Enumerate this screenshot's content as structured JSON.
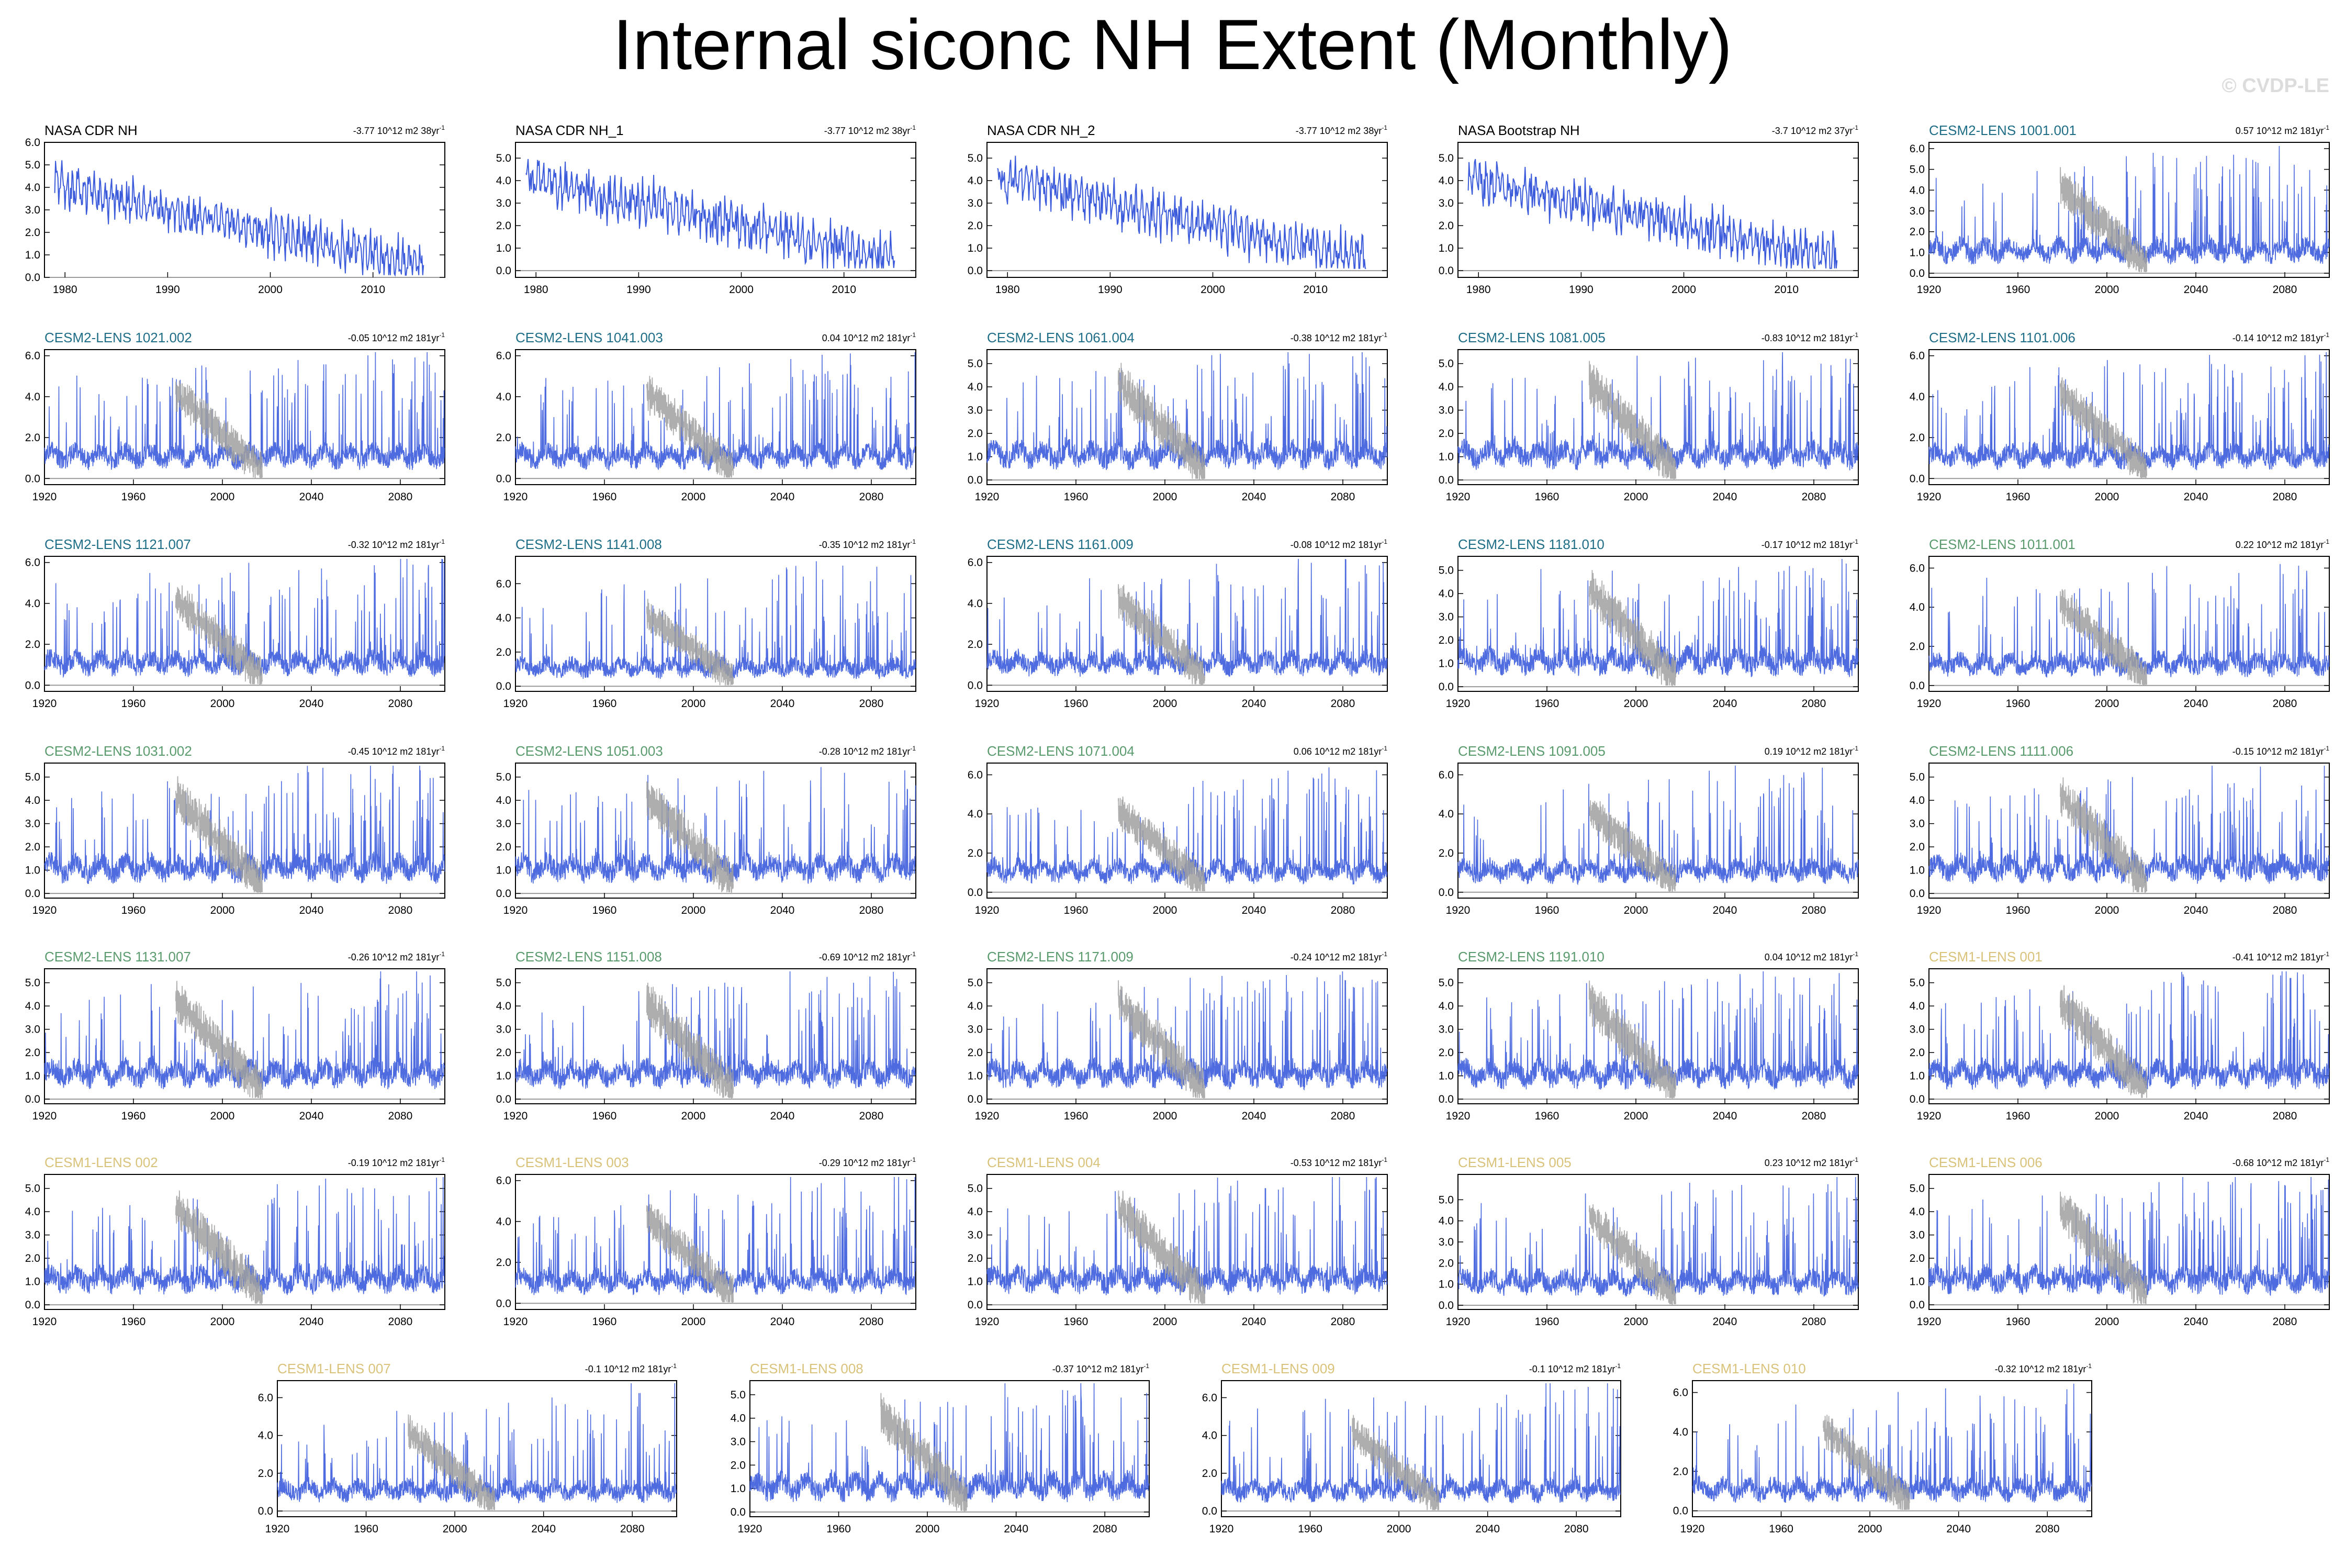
{
  "title": "Internal siconc NH Extent (Monthly)",
  "watermark": "© CVDP-LE",
  "colors": {
    "series": "#3b5bdb",
    "observed_overlay": "#a0a0a0",
    "frame": "#000000",
    "zero_line": "#999999",
    "name_obs": "#000000",
    "name_cesm2_a": "#1f6e87",
    "name_cesm2_b": "#5a9b6e",
    "name_cesm1": "#d9c27a"
  },
  "chart_data": [
    {
      "type": "line",
      "name": "NASA CDR NH",
      "trend": "-3.77 10^12 m2 38yr",
      "name_color": "name_obs",
      "xlim": [
        1978,
        2017
      ],
      "xticks": [
        "1980",
        "1990",
        "2000",
        "2010"
      ],
      "ylim": [
        0,
        6
      ],
      "yticks": [
        "0.0",
        "1.0",
        "2.0",
        "3.0",
        "4.0",
        "5.0",
        "6.0"
      ],
      "overlay": false
    },
    {
      "type": "line",
      "name": "NASA CDR NH_1",
      "trend": "-3.77 10^12 m2 38yr",
      "name_color": "name_obs",
      "xlim": [
        1978,
        2017
      ],
      "xticks": [
        "1980",
        "1990",
        "2000",
        "2010"
      ],
      "ylim": [
        -0.3,
        5.7
      ],
      "yticks": [
        "0.0",
        "1.0",
        "2.0",
        "3.0",
        "4.0",
        "5.0"
      ],
      "overlay": false
    },
    {
      "type": "line",
      "name": "NASA CDR NH_2",
      "trend": "-3.77 10^12 m2 38yr",
      "name_color": "name_obs",
      "xlim": [
        1978,
        2017
      ],
      "xticks": [
        "1980",
        "1990",
        "2000",
        "2010"
      ],
      "ylim": [
        -0.3,
        5.7
      ],
      "yticks": [
        "0.0",
        "1.0",
        "2.0",
        "3.0",
        "4.0",
        "5.0"
      ],
      "overlay": false
    },
    {
      "type": "line",
      "name": "NASA Bootstrap NH",
      "trend": "-3.7 10^12 m2 37yr",
      "name_color": "name_obs",
      "xlim": [
        1978,
        2017
      ],
      "xticks": [
        "1980",
        "1990",
        "2000",
        "2010"
      ],
      "ylim": [
        -0.3,
        5.7
      ],
      "yticks": [
        "0.0",
        "1.0",
        "2.0",
        "3.0",
        "4.0",
        "5.0"
      ],
      "overlay": false
    },
    {
      "type": "line",
      "name": "CESM2-LENS 1001.001",
      "trend": "0.57 10^12 m2 181yr",
      "name_color": "name_cesm2_a",
      "xlim": [
        1920,
        2100
      ],
      "xticks": [
        "1920",
        "1960",
        "2000",
        "2040",
        "2080"
      ],
      "ylim": [
        -0.2,
        6.3
      ],
      "yticks": [
        "0.0",
        "1.0",
        "2.0",
        "3.0",
        "4.0",
        "5.0",
        "6.0"
      ],
      "overlay": true
    },
    {
      "type": "line",
      "name": "CESM2-LENS 1021.002",
      "trend": "-0.05 10^12 m2 181yr",
      "name_color": "name_cesm2_a",
      "xlim": [
        1920,
        2100
      ],
      "xticks": [
        "1920",
        "1960",
        "2000",
        "2040",
        "2080"
      ],
      "ylim": [
        -0.3,
        6.3
      ],
      "yticks": [
        "0.0",
        "2.0",
        "4.0",
        "6.0"
      ],
      "overlay": true
    },
    {
      "type": "line",
      "name": "CESM2-LENS 1041.003",
      "trend": "0.04 10^12 m2 181yr",
      "name_color": "name_cesm2_a",
      "xlim": [
        1920,
        2100
      ],
      "xticks": [
        "1920",
        "1960",
        "2000",
        "2040",
        "2080"
      ],
      "ylim": [
        -0.3,
        6.3
      ],
      "yticks": [
        "0.0",
        "2.0",
        "4.0",
        "6.0"
      ],
      "overlay": true
    },
    {
      "type": "line",
      "name": "CESM2-LENS 1061.004",
      "trend": "-0.38 10^12 m2 181yr",
      "name_color": "name_cesm2_a",
      "xlim": [
        1920,
        2100
      ],
      "xticks": [
        "1920",
        "1960",
        "2000",
        "2040",
        "2080"
      ],
      "ylim": [
        -0.2,
        5.6
      ],
      "yticks": [
        "0.0",
        "1.0",
        "2.0",
        "3.0",
        "4.0",
        "5.0"
      ],
      "overlay": true
    },
    {
      "type": "line",
      "name": "CESM2-LENS 1081.005",
      "trend": "-0.83 10^12 m2 181yr",
      "name_color": "name_cesm2_a",
      "xlim": [
        1920,
        2100
      ],
      "xticks": [
        "1920",
        "1960",
        "2000",
        "2040",
        "2080"
      ],
      "ylim": [
        -0.2,
        5.6
      ],
      "yticks": [
        "0.0",
        "1.0",
        "2.0",
        "3.0",
        "4.0",
        "5.0"
      ],
      "overlay": true
    },
    {
      "type": "line",
      "name": "CESM2-LENS 1101.006",
      "trend": "-0.14 10^12 m2 181yr",
      "name_color": "name_cesm2_a",
      "xlim": [
        1920,
        2100
      ],
      "xticks": [
        "1920",
        "1960",
        "2000",
        "2040",
        "2080"
      ],
      "ylim": [
        -0.3,
        6.3
      ],
      "yticks": [
        "0.0",
        "2.0",
        "4.0",
        "6.0"
      ],
      "overlay": true
    },
    {
      "type": "line",
      "name": "CESM2-LENS 1121.007",
      "trend": "-0.32 10^12 m2 181yr",
      "name_color": "name_cesm2_a",
      "xlim": [
        1920,
        2100
      ],
      "xticks": [
        "1920",
        "1960",
        "2000",
        "2040",
        "2080"
      ],
      "ylim": [
        -0.3,
        6.3
      ],
      "yticks": [
        "0.0",
        "2.0",
        "4.0",
        "6.0"
      ],
      "overlay": true
    },
    {
      "type": "line",
      "name": "CESM2-LENS 1141.008",
      "trend": "-0.35 10^12 m2 181yr",
      "name_color": "name_cesm2_a",
      "xlim": [
        1920,
        2100
      ],
      "xticks": [
        "1920",
        "1960",
        "2000",
        "2040",
        "2080"
      ],
      "ylim": [
        -0.3,
        7.6
      ],
      "yticks": [
        "0.0",
        "2.0",
        "4.0",
        "6.0"
      ],
      "overlay": true
    },
    {
      "type": "line",
      "name": "CESM2-LENS 1161.009",
      "trend": "-0.08 10^12 m2 181yr",
      "name_color": "name_cesm2_a",
      "xlim": [
        1920,
        2100
      ],
      "xticks": [
        "1920",
        "1960",
        "2000",
        "2040",
        "2080"
      ],
      "ylim": [
        -0.3,
        6.3
      ],
      "yticks": [
        "0.0",
        "2.0",
        "4.0",
        "6.0"
      ],
      "overlay": true
    },
    {
      "type": "line",
      "name": "CESM2-LENS 1181.010",
      "trend": "-0.17 10^12 m2 181yr",
      "name_color": "name_cesm2_a",
      "xlim": [
        1920,
        2100
      ],
      "xticks": [
        "1920",
        "1960",
        "2000",
        "2040",
        "2080"
      ],
      "ylim": [
        -0.2,
        5.6
      ],
      "yticks": [
        "0.0",
        "1.0",
        "2.0",
        "3.0",
        "4.0",
        "5.0"
      ],
      "overlay": true
    },
    {
      "type": "line",
      "name": "CESM2-LENS 1011.001",
      "trend": "0.22 10^12 m2 181yr",
      "name_color": "name_cesm2_b",
      "xlim": [
        1920,
        2100
      ],
      "xticks": [
        "1920",
        "1960",
        "2000",
        "2040",
        "2080"
      ],
      "ylim": [
        -0.3,
        6.6
      ],
      "yticks": [
        "0.0",
        "2.0",
        "4.0",
        "6.0"
      ],
      "overlay": true
    },
    {
      "type": "line",
      "name": "CESM2-LENS 1031.002",
      "trend": "-0.45 10^12 m2 181yr",
      "name_color": "name_cesm2_b",
      "xlim": [
        1920,
        2100
      ],
      "xticks": [
        "1920",
        "1960",
        "2000",
        "2040",
        "2080"
      ],
      "ylim": [
        -0.2,
        5.6
      ],
      "yticks": [
        "0.0",
        "1.0",
        "2.0",
        "3.0",
        "4.0",
        "5.0"
      ],
      "overlay": true
    },
    {
      "type": "line",
      "name": "CESM2-LENS 1051.003",
      "trend": "-0.28 10^12 m2 181yr",
      "name_color": "name_cesm2_b",
      "xlim": [
        1920,
        2100
      ],
      "xticks": [
        "1920",
        "1960",
        "2000",
        "2040",
        "2080"
      ],
      "ylim": [
        -0.2,
        5.6
      ],
      "yticks": [
        "0.0",
        "1.0",
        "2.0",
        "3.0",
        "4.0",
        "5.0"
      ],
      "overlay": true
    },
    {
      "type": "line",
      "name": "CESM2-LENS 1071.004",
      "trend": "0.06 10^12 m2 181yr",
      "name_color": "name_cesm2_b",
      "xlim": [
        1920,
        2100
      ],
      "xticks": [
        "1920",
        "1960",
        "2000",
        "2040",
        "2080"
      ],
      "ylim": [
        -0.3,
        6.6
      ],
      "yticks": [
        "0.0",
        "2.0",
        "4.0",
        "6.0"
      ],
      "overlay": true
    },
    {
      "type": "line",
      "name": "CESM2-LENS 1091.005",
      "trend": "0.19 10^12 m2 181yr",
      "name_color": "name_cesm2_b",
      "xlim": [
        1920,
        2100
      ],
      "xticks": [
        "1920",
        "1960",
        "2000",
        "2040",
        "2080"
      ],
      "ylim": [
        -0.3,
        6.6
      ],
      "yticks": [
        "0.0",
        "2.0",
        "4.0",
        "6.0"
      ],
      "overlay": true
    },
    {
      "type": "line",
      "name": "CESM2-LENS 1111.006",
      "trend": "-0.15 10^12 m2 181yr",
      "name_color": "name_cesm2_b",
      "xlim": [
        1920,
        2100
      ],
      "xticks": [
        "1920",
        "1960",
        "2000",
        "2040",
        "2080"
      ],
      "ylim": [
        -0.2,
        5.6
      ],
      "yticks": [
        "0.0",
        "1.0",
        "2.0",
        "3.0",
        "4.0",
        "5.0"
      ],
      "overlay": true
    },
    {
      "type": "line",
      "name": "CESM2-LENS 1131.007",
      "trend": "-0.26 10^12 m2 181yr",
      "name_color": "name_cesm2_b",
      "xlim": [
        1920,
        2100
      ],
      "xticks": [
        "1920",
        "1960",
        "2000",
        "2040",
        "2080"
      ],
      "ylim": [
        -0.2,
        5.6
      ],
      "yticks": [
        "0.0",
        "1.0",
        "2.0",
        "3.0",
        "4.0",
        "5.0"
      ],
      "overlay": true
    },
    {
      "type": "line",
      "name": "CESM2-LENS 1151.008",
      "trend": "-0.69 10^12 m2 181yr",
      "name_color": "name_cesm2_b",
      "xlim": [
        1920,
        2100
      ],
      "xticks": [
        "1920",
        "1960",
        "2000",
        "2040",
        "2080"
      ],
      "ylim": [
        -0.2,
        5.6
      ],
      "yticks": [
        "0.0",
        "1.0",
        "2.0",
        "3.0",
        "4.0",
        "5.0"
      ],
      "overlay": true
    },
    {
      "type": "line",
      "name": "CESM2-LENS 1171.009",
      "trend": "-0.24 10^12 m2 181yr",
      "name_color": "name_cesm2_b",
      "xlim": [
        1920,
        2100
      ],
      "xticks": [
        "1920",
        "1960",
        "2000",
        "2040",
        "2080"
      ],
      "ylim": [
        -0.2,
        5.6
      ],
      "yticks": [
        "0.0",
        "1.0",
        "2.0",
        "3.0",
        "4.0",
        "5.0"
      ],
      "overlay": true
    },
    {
      "type": "line",
      "name": "CESM2-LENS 1191.010",
      "trend": "0.04 10^12 m2 181yr",
      "name_color": "name_cesm2_b",
      "xlim": [
        1920,
        2100
      ],
      "xticks": [
        "1920",
        "1960",
        "2000",
        "2040",
        "2080"
      ],
      "ylim": [
        -0.2,
        5.6
      ],
      "yticks": [
        "0.0",
        "1.0",
        "2.0",
        "3.0",
        "4.0",
        "5.0"
      ],
      "overlay": true
    },
    {
      "type": "line",
      "name": "CESM1-LENS 001",
      "trend": "-0.41 10^12 m2 181yr",
      "name_color": "name_cesm1",
      "xlim": [
        1920,
        2100
      ],
      "xticks": [
        "1920",
        "1960",
        "2000",
        "2040",
        "2080"
      ],
      "ylim": [
        -0.2,
        5.6
      ],
      "yticks": [
        "0.0",
        "1.0",
        "2.0",
        "3.0",
        "4.0",
        "5.0"
      ],
      "overlay": true
    },
    {
      "type": "line",
      "name": "CESM1-LENS 002",
      "trend": "-0.19 10^12 m2 181yr",
      "name_color": "name_cesm1",
      "xlim": [
        1920,
        2100
      ],
      "xticks": [
        "1920",
        "1960",
        "2000",
        "2040",
        "2080"
      ],
      "ylim": [
        -0.2,
        5.6
      ],
      "yticks": [
        "0.0",
        "1.0",
        "2.0",
        "3.0",
        "4.0",
        "5.0"
      ],
      "overlay": true
    },
    {
      "type": "line",
      "name": "CESM1-LENS 003",
      "trend": "-0.29 10^12 m2 181yr",
      "name_color": "name_cesm1",
      "xlim": [
        1920,
        2100
      ],
      "xticks": [
        "1920",
        "1960",
        "2000",
        "2040",
        "2080"
      ],
      "ylim": [
        -0.3,
        6.3
      ],
      "yticks": [
        "0.0",
        "2.0",
        "4.0",
        "6.0"
      ],
      "overlay": true
    },
    {
      "type": "line",
      "name": "CESM1-LENS 004",
      "trend": "-0.53 10^12 m2 181yr",
      "name_color": "name_cesm1",
      "xlim": [
        1920,
        2100
      ],
      "xticks": [
        "1920",
        "1960",
        "2000",
        "2040",
        "2080"
      ],
      "ylim": [
        -0.2,
        5.6
      ],
      "yticks": [
        "0.0",
        "1.0",
        "2.0",
        "3.0",
        "4.0",
        "5.0"
      ],
      "overlay": true
    },
    {
      "type": "line",
      "name": "CESM1-LENS 005",
      "trend": "0.23 10^12 m2 181yr",
      "name_color": "name_cesm1",
      "xlim": [
        1920,
        2100
      ],
      "xticks": [
        "1920",
        "1960",
        "2000",
        "2040",
        "2080"
      ],
      "ylim": [
        -0.2,
        6.2
      ],
      "yticks": [
        "0.0",
        "1.0",
        "2.0",
        "3.0",
        "4.0",
        "5.0"
      ],
      "overlay": true
    },
    {
      "type": "line",
      "name": "CESM1-LENS 006",
      "trend": "-0.68 10^12 m2 181yr",
      "name_color": "name_cesm1",
      "xlim": [
        1920,
        2100
      ],
      "xticks": [
        "1920",
        "1960",
        "2000",
        "2040",
        "2080"
      ],
      "ylim": [
        -0.2,
        5.6
      ],
      "yticks": [
        "0.0",
        "1.0",
        "2.0",
        "3.0",
        "4.0",
        "5.0"
      ],
      "overlay": true
    },
    {
      "type": "line",
      "name": "CESM1-LENS 007",
      "trend": "-0.1 10^12 m2 181yr",
      "name_color": "name_cesm1",
      "xlim": [
        1920,
        2100
      ],
      "xticks": [
        "1920",
        "1960",
        "2000",
        "2040",
        "2080"
      ],
      "ylim": [
        -0.3,
        6.9
      ],
      "yticks": [
        "0.0",
        "2.0",
        "4.0",
        "6.0"
      ],
      "overlay": true
    },
    {
      "type": "line",
      "name": "CESM1-LENS 008",
      "trend": "-0.37 10^12 m2 181yr",
      "name_color": "name_cesm1",
      "xlim": [
        1920,
        2100
      ],
      "xticks": [
        "1920",
        "1960",
        "2000",
        "2040",
        "2080"
      ],
      "ylim": [
        -0.2,
        5.6
      ],
      "yticks": [
        "0.0",
        "1.0",
        "2.0",
        "3.0",
        "4.0",
        "5.0"
      ],
      "overlay": true
    },
    {
      "type": "line",
      "name": "CESM1-LENS 009",
      "trend": "-0.1 10^12 m2 181yr",
      "name_color": "name_cesm1",
      "xlim": [
        1920,
        2100
      ],
      "xticks": [
        "1920",
        "1960",
        "2000",
        "2040",
        "2080"
      ],
      "ylim": [
        -0.3,
        6.9
      ],
      "yticks": [
        "0.0",
        "2.0",
        "4.0",
        "6.0"
      ],
      "overlay": true
    },
    {
      "type": "line",
      "name": "CESM1-LENS 010",
      "trend": "-0.32 10^12 m2 181yr",
      "name_color": "name_cesm1",
      "xlim": [
        1920,
        2100
      ],
      "xticks": [
        "1920",
        "1960",
        "2000",
        "2040",
        "2080"
      ],
      "ylim": [
        -0.3,
        6.6
      ],
      "yticks": [
        "0.0",
        "2.0",
        "4.0",
        "6.0"
      ],
      "overlay": true
    }
  ]
}
